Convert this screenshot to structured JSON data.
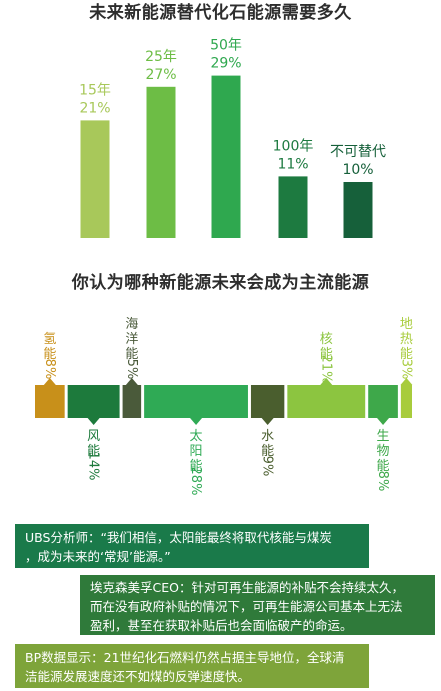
{
  "chart_data": [
    {
      "type": "bar",
      "title": "未来新能源替代化石能源需要多久",
      "categories": [
        "15年",
        "25年",
        "50年",
        "100年",
        "不可替代"
      ],
      "values": [
        21,
        27,
        29,
        11,
        10
      ],
      "value_labels": [
        "21%",
        "27%",
        "29%",
        "11%",
        "10%"
      ],
      "ylim": [
        0,
        30
      ],
      "grid": false,
      "colors": [
        "#a8c85a",
        "#6dbd45",
        "#2fa84f",
        "#1d7a40",
        "#16603a"
      ]
    },
    {
      "type": "bar",
      "title": "你认为哪种新能源未来会成为主流能源",
      "categories": [
        "氢能",
        "风能",
        "海洋能",
        "太阳能",
        "水能",
        "核能",
        "生物能",
        "地热能"
      ],
      "values": [
        8,
        14,
        5,
        28,
        9,
        21,
        8,
        3
      ],
      "value_labels": [
        "8%",
        "14%",
        "5%",
        "28%",
        "9%",
        "21%",
        "8%",
        "3%"
      ],
      "label_positions": [
        "top",
        "bottom",
        "top",
        "bottom",
        "bottom",
        "top",
        "bottom",
        "top"
      ],
      "colors": [
        "#c8901a",
        "#1d7a3c",
        "#4a5a3a",
        "#2faa55",
        "#4a5e2e",
        "#8cc540",
        "#3ea84a",
        "#a8cc3c"
      ]
    }
  ],
  "quotes": [
    {
      "lines": [
        "UBS分析师：“我们相信，太阳能最终将取代核能与煤炭",
        "，成为未来的‘常规’能源。”"
      ],
      "color": "#1a7a4a"
    },
    {
      "lines": [
        "埃克森美孚CEO：针对可再生能源的补贴不会持续太久，",
        "而在没有政府补贴的情况下，可再生能源公司基本上无法",
        "盈利，甚至在获取补贴后也会面临破产的命运。"
      ],
      "color": "#2f7a3a"
    },
    {
      "lines": [
        "BP数据显示：21世纪化石燃料仍然占据主导地位，全球清",
        "洁能源发展速度还不如煤的反弹速度快。"
      ],
      "color": "#7ea43a"
    }
  ]
}
